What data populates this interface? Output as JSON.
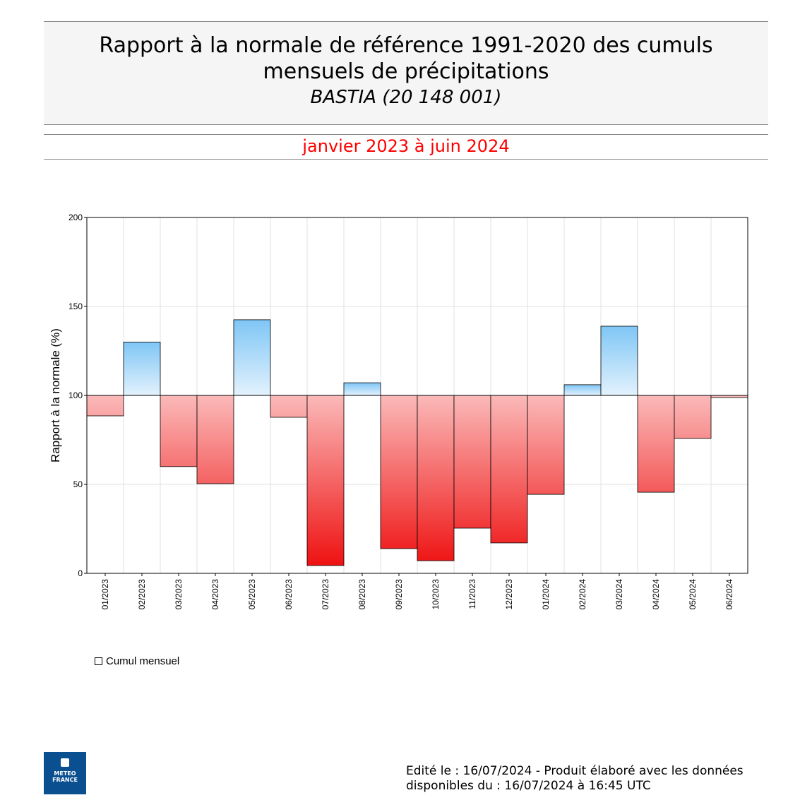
{
  "header": {
    "title_line1": "Rapport à la normale de référence 1991-2020 des cumuls",
    "title_line2": "mensuels de précipitations",
    "station": "BASTIA (20 148 001)",
    "period": "janvier 2023 à juin 2024"
  },
  "chart_data": {
    "type": "bar",
    "title": "Rapport à la normale de référence 1991-2020 des cumuls mensuels de précipitations",
    "ylabel": "Rapport à la normale (%)",
    "xlabel": "",
    "ylim": [
      0,
      200
    ],
    "yticks": [
      0,
      50,
      100,
      150,
      200
    ],
    "baseline": 100,
    "grid": true,
    "categories": [
      "01/2023",
      "02/2023",
      "03/2023",
      "04/2023",
      "05/2023",
      "06/2023",
      "07/2023",
      "08/2023",
      "09/2023",
      "10/2023",
      "11/2023",
      "12/2023",
      "01/2024",
      "02/2024",
      "03/2024",
      "04/2024",
      "05/2024",
      "06/2024"
    ],
    "series": [
      {
        "name": "Cumul mensuel",
        "values": [
          88.5,
          130,
          60,
          50.4,
          142.5,
          87.7,
          4.4,
          107.1,
          13.9,
          7.1,
          25.4,
          17.1,
          44.4,
          106,
          138.9,
          45.6,
          75.8,
          98.8
        ]
      }
    ],
    "colors": {
      "above": "#7fc6f5",
      "above_light": "#e3f2fd",
      "below": "#ee1111",
      "below_light": "#fbb9b9"
    },
    "legend": "bottom-left"
  },
  "legend": {
    "label": "Cumul mensuel"
  },
  "logo": {
    "line1": "METEO",
    "line2": "FRANCE"
  },
  "footer": {
    "line1": "Edité le : 16/07/2024 - Produit élaboré avec les données",
    "line2": "disponibles du : 16/07/2024 à 16:45 UTC"
  }
}
